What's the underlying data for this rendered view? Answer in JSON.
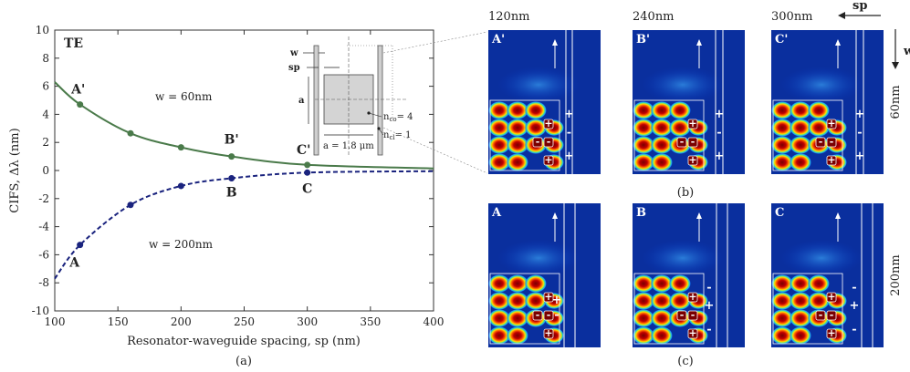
{
  "chart_data": [
    {
      "type": "line",
      "panel_label": "(a)",
      "corner_label": "TE",
      "xlabel": "Resonator-waveguide spacing, sp (nm)",
      "ylabel": "CIFS, Δλ (nm)",
      "xlim": [
        100,
        400
      ],
      "ylim": [
        -10,
        10
      ],
      "xticks": [
        "100",
        "150",
        "200",
        "250",
        "300",
        "350",
        "400"
      ],
      "yticks": [
        "10",
        "8",
        "6",
        "4",
        "2",
        "0",
        "-2",
        "-4",
        "-6",
        "-8",
        "-10"
      ],
      "grid": false,
      "series": [
        {
          "name": "w = 60nm",
          "color": "#4a7a4a",
          "line_style": "solid",
          "curve": [
            [
              100,
              6.3
            ],
            [
              120,
              4.7
            ],
            [
              160,
              2.65
            ],
            [
              200,
              1.65
            ],
            [
              240,
              1.0
            ],
            [
              300,
              0.4
            ],
            [
              400,
              0.15
            ]
          ],
          "points": [
            [
              120,
              4.7
            ],
            [
              160,
              2.65
            ],
            [
              200,
              1.65
            ],
            [
              240,
              1.0
            ],
            [
              300,
              0.4
            ]
          ],
          "point_labels": [
            "A'",
            "",
            "",
            "B'",
            "C'"
          ]
        },
        {
          "name": "w = 200nm",
          "color": "#1a237e",
          "line_style": "dashed",
          "curve": [
            [
              100,
              -7.7
            ],
            [
              120,
              -5.3
            ],
            [
              160,
              -2.45
            ],
            [
              200,
              -1.1
            ],
            [
              240,
              -0.55
            ],
            [
              300,
              -0.15
            ],
            [
              400,
              -0.05
            ]
          ],
          "points": [
            [
              120,
              -5.3
            ],
            [
              160,
              -2.45
            ],
            [
              200,
              -1.1
            ],
            [
              240,
              -0.55
            ],
            [
              300,
              -0.15
            ]
          ],
          "point_labels": [
            "A",
            "",
            "",
            "B",
            "C"
          ]
        }
      ],
      "inset": {
        "w": "w",
        "sp": "sp",
        "a": "a",
        "a_dim": "a = 1.8 μm",
        "nco": "n",
        "nco_sub": "co",
        "nco_val": "= 4",
        "ncl": "n",
        "ncl_sub": "cl",
        "ncl_val": "= 1"
      }
    }
  ],
  "field_maps": {
    "columns": [
      "120nm",
      "240nm",
      "300nm"
    ],
    "sp_label": "sp",
    "w_label": "w",
    "row_labels": [
      "60nm",
      "200nm"
    ],
    "panel_labels": [
      "(b)",
      "(c)"
    ],
    "tiles": [
      {
        "label": "A'",
        "signs": [
          "+",
          "-",
          "+"
        ]
      },
      {
        "label": "B'",
        "signs": [
          "+",
          "-",
          "+"
        ]
      },
      {
        "label": "C'",
        "signs": [
          "+",
          "-",
          "+"
        ]
      },
      {
        "label": "A",
        "signs": [
          "+",
          "-"
        ]
      },
      {
        "label": "B",
        "signs": [
          "-",
          "+",
          "-"
        ]
      },
      {
        "label": "C",
        "signs": [
          "-",
          "+",
          "-"
        ]
      }
    ],
    "mode_signs": [
      "+",
      "-",
      "-",
      "+"
    ]
  }
}
